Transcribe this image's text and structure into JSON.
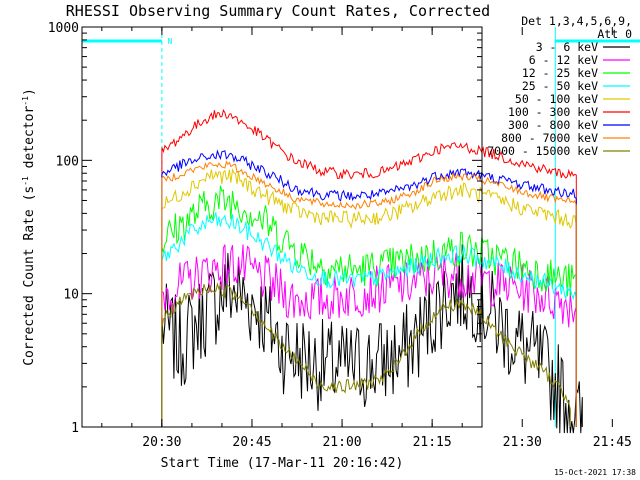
{
  "chart_data": {
    "type": "line",
    "title": "RHESSI Observing Summary Count Rates, Corrected",
    "xlabel": "Start Time (17-Mar-11 20:16:42)",
    "ylabel_main": "Corrected Count Rate (s",
    "ylabel_sup1": "-1",
    "ylabel_mid": " detector",
    "ylabel_sup2": "-1",
    "ylabel_end": ")",
    "yscale": "log",
    "ylim": [
      1,
      1000
    ],
    "xlim_min": [
      16.7,
      83.3
    ],
    "xticks": [
      {
        "m": 30,
        "label": "20:30"
      },
      {
        "m": 45,
        "label": "20:45"
      },
      {
        "m": 60,
        "label": "21:00"
      },
      {
        "m": 75,
        "label": "21:15"
      },
      {
        "m": 90,
        "label": "21:30"
      },
      {
        "m": 105,
        "label": "21:45"
      }
    ],
    "yticks": [
      {
        "v": 1,
        "label": "1"
      },
      {
        "v": 10,
        "label": "10"
      },
      {
        "v": 100,
        "label": "100"
      },
      {
        "v": 1000,
        "label": "1000"
      }
    ],
    "legend_header": [
      "Det 1,3,4,5,6,9,",
      "Att 0"
    ],
    "series": [
      {
        "name": "3 - 6 keV",
        "color": "#000000",
        "noise": 0.35,
        "points": [
          [
            30,
            6
          ],
          [
            33,
            4
          ],
          [
            37,
            7
          ],
          [
            41,
            11
          ],
          [
            46,
            8
          ],
          [
            50,
            4
          ],
          [
            55,
            3
          ],
          [
            60,
            2.8
          ],
          [
            66,
            3
          ],
          [
            70,
            3.5
          ],
          [
            73,
            5
          ],
          [
            76,
            8
          ],
          [
            79,
            11
          ],
          [
            82,
            10
          ],
          [
            86,
            6
          ],
          [
            90,
            4
          ],
          [
            93,
            3
          ],
          [
            96,
            2
          ],
          [
            98,
            1.5
          ],
          [
            100,
            1
          ]
        ]
      },
      {
        "name": "6 - 12 keV",
        "color": "#ff00ff",
        "noise": 0.18,
        "points": [
          [
            30,
            10
          ],
          [
            34,
            12
          ],
          [
            38,
            15
          ],
          [
            42,
            17
          ],
          [
            47,
            13
          ],
          [
            52,
            9
          ],
          [
            57,
            9
          ],
          [
            62,
            10
          ],
          [
            67,
            11
          ],
          [
            72,
            12
          ],
          [
            76,
            14
          ],
          [
            80,
            14
          ],
          [
            85,
            12
          ],
          [
            90,
            11
          ],
          [
            96,
            9
          ],
          [
            99,
            8
          ]
        ]
      },
      {
        "name": "12 - 25 keV",
        "color": "#00ff00",
        "noise": 0.14,
        "points": [
          [
            30,
            25
          ],
          [
            34,
            35
          ],
          [
            38,
            48
          ],
          [
            42,
            50
          ],
          [
            47,
            35
          ],
          [
            52,
            22
          ],
          [
            57,
            16
          ],
          [
            62,
            15
          ],
          [
            67,
            16
          ],
          [
            72,
            18
          ],
          [
            76,
            20
          ],
          [
            80,
            22
          ],
          [
            85,
            19
          ],
          [
            90,
            16
          ],
          [
            96,
            13
          ],
          [
            99,
            12
          ]
        ]
      },
      {
        "name": "25 - 50 keV",
        "color": "#00ffff",
        "noise": 0.07,
        "points": [
          [
            30,
            18
          ],
          [
            34,
            27
          ],
          [
            38,
            35
          ],
          [
            42,
            34
          ],
          [
            47,
            24
          ],
          [
            52,
            16
          ],
          [
            57,
            13
          ],
          [
            62,
            12.5
          ],
          [
            67,
            13.5
          ],
          [
            72,
            16
          ],
          [
            76,
            19
          ],
          [
            80,
            20
          ],
          [
            85,
            17
          ],
          [
            90,
            14
          ],
          [
            96,
            11
          ],
          [
            99,
            10
          ]
        ]
      },
      {
        "name": "50 - 100 keV",
        "color": "#e0c800",
        "noise": 0.06,
        "points": [
          [
            30,
            45
          ],
          [
            34,
            60
          ],
          [
            38,
            78
          ],
          [
            42,
            75
          ],
          [
            47,
            55
          ],
          [
            52,
            42
          ],
          [
            57,
            37
          ],
          [
            62,
            36
          ],
          [
            67,
            38
          ],
          [
            72,
            45
          ],
          [
            76,
            56
          ],
          [
            80,
            60
          ],
          [
            85,
            52
          ],
          [
            90,
            44
          ],
          [
            96,
            37
          ],
          [
            99,
            35
          ]
        ]
      },
      {
        "name": "100 - 300 keV",
        "color": "#ff0000",
        "noise": 0.04,
        "points": [
          [
            30,
            115
          ],
          [
            34,
            160
          ],
          [
            38,
            215
          ],
          [
            41,
            225
          ],
          [
            46,
            160
          ],
          [
            52,
            100
          ],
          [
            57,
            82
          ],
          [
            62,
            78
          ],
          [
            67,
            82
          ],
          [
            72,
            100
          ],
          [
            76,
            122
          ],
          [
            80,
            128
          ],
          [
            85,
            112
          ],
          [
            90,
            95
          ],
          [
            96,
            80
          ],
          [
            99,
            78
          ]
        ]
      },
      {
        "name": "300 - 800 keV",
        "color": "#0000ff",
        "noise": 0.04,
        "points": [
          [
            30,
            80
          ],
          [
            34,
            95
          ],
          [
            38,
            108
          ],
          [
            41,
            110
          ],
          [
            46,
            88
          ],
          [
            52,
            62
          ],
          [
            57,
            55
          ],
          [
            62,
            54
          ],
          [
            67,
            56
          ],
          [
            72,
            65
          ],
          [
            76,
            78
          ],
          [
            80,
            82
          ],
          [
            85,
            74
          ],
          [
            90,
            66
          ],
          [
            96,
            58
          ],
          [
            99,
            56
          ]
        ]
      },
      {
        "name": "800 - 7000 keV",
        "color": "#ff8000",
        "noise": 0.03,
        "points": [
          [
            30,
            70
          ],
          [
            34,
            82
          ],
          [
            38,
            92
          ],
          [
            41,
            93
          ],
          [
            46,
            72
          ],
          [
            52,
            52
          ],
          [
            57,
            47
          ],
          [
            62,
            46
          ],
          [
            67,
            48
          ],
          [
            72,
            58
          ],
          [
            76,
            72
          ],
          [
            80,
            76
          ],
          [
            85,
            68
          ],
          [
            90,
            58
          ],
          [
            96,
            50
          ],
          [
            99,
            48
          ]
        ]
      },
      {
        "name": "7000 - 15000 keV",
        "color": "#808000",
        "noise": 0.05,
        "points": [
          [
            30,
            6
          ],
          [
            32,
            8
          ],
          [
            35,
            10
          ],
          [
            38,
            11
          ],
          [
            41,
            10.5
          ],
          [
            44,
            9
          ],
          [
            47,
            6
          ],
          [
            50,
            4
          ],
          [
            53,
            3
          ],
          [
            56,
            2.1
          ],
          [
            60,
            2
          ],
          [
            64,
            2.1
          ],
          [
            68,
            2.5
          ],
          [
            71,
            4
          ],
          [
            74,
            6
          ],
          [
            77,
            8
          ],
          [
            80,
            8.5
          ],
          [
            83,
            7
          ],
          [
            86,
            5
          ],
          [
            90,
            3.5
          ],
          [
            94,
            2.5
          ],
          [
            96,
            2
          ],
          [
            98,
            1.5
          ]
        ]
      }
    ],
    "flag_bar_label": "N",
    "footer_date": "15-Oct-2021 17:38"
  }
}
